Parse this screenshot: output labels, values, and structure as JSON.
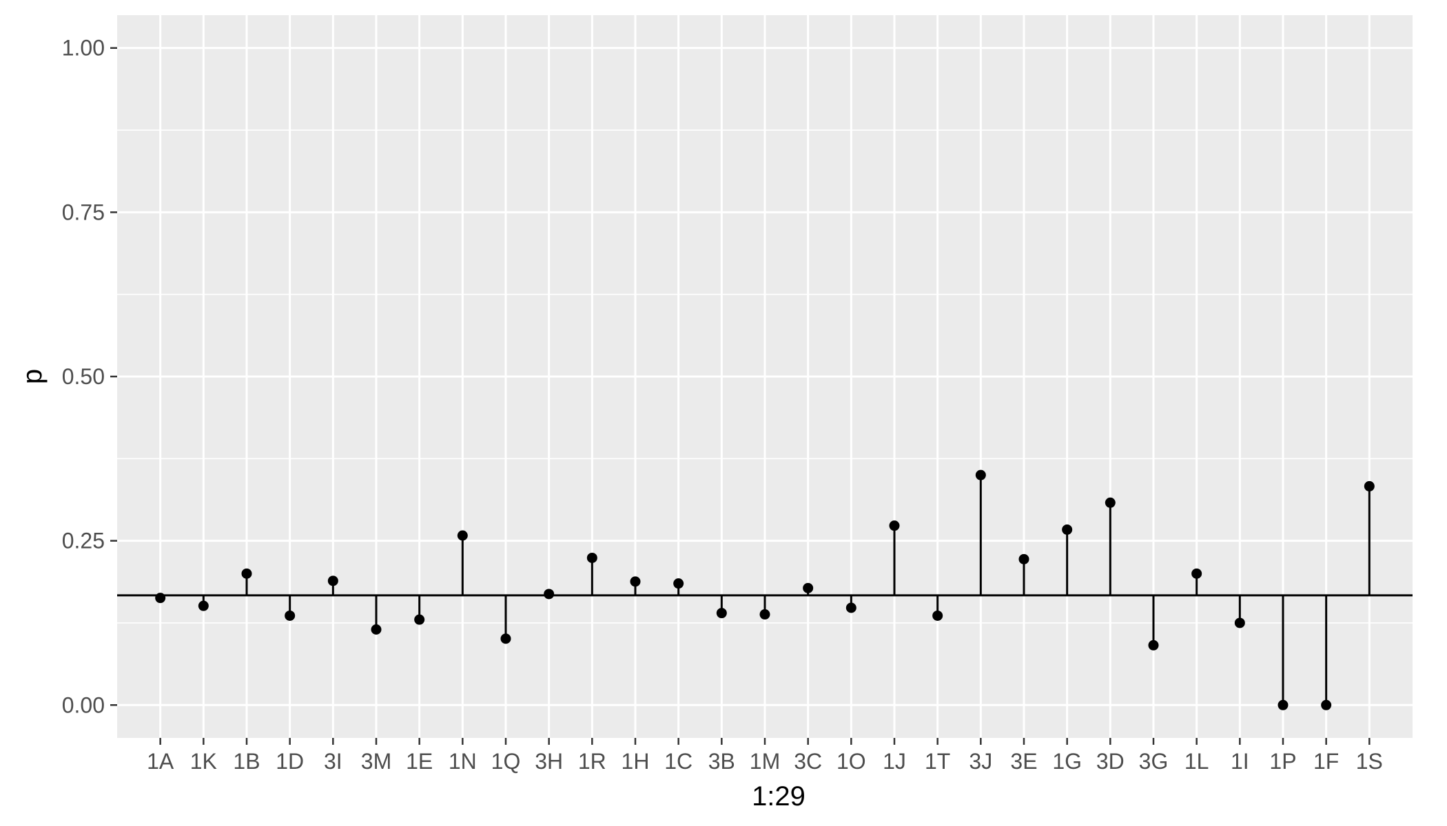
{
  "chart_data": {
    "type": "scatter",
    "xlabel": "1:29",
    "ylabel": "p",
    "ylim": [
      -0.05,
      1.05
    ],
    "yticks": [
      0.0,
      0.25,
      0.5,
      0.75,
      1.0
    ],
    "ytick_labels": [
      "0.00",
      "0.25",
      "0.50",
      "0.75",
      "1.00"
    ],
    "reference_line": 0.167,
    "grid": true,
    "categories": [
      "1A",
      "1K",
      "1B",
      "1D",
      "3I",
      "3M",
      "1E",
      "1N",
      "1Q",
      "3H",
      "1R",
      "1H",
      "1C",
      "3B",
      "1M",
      "3C",
      "1O",
      "1J",
      "1T",
      "3J",
      "3E",
      "1G",
      "3D",
      "3G",
      "1L",
      "1I",
      "1P",
      "1F",
      "1S"
    ],
    "values": [
      0.163,
      0.151,
      0.2,
      0.136,
      0.189,
      0.115,
      0.13,
      0.258,
      0.101,
      0.169,
      0.224,
      0.188,
      0.185,
      0.14,
      0.138,
      0.178,
      0.148,
      0.273,
      0.136,
      0.35,
      0.222,
      0.267,
      0.308,
      0.091,
      0.2,
      0.125,
      0.0,
      0.0,
      0.333
    ],
    "colors": {
      "panel": "#ebebeb",
      "grid": "#ffffff",
      "mark": "#000000",
      "tick_text": "#4d4d4d",
      "tick_mark": "#333333"
    }
  }
}
